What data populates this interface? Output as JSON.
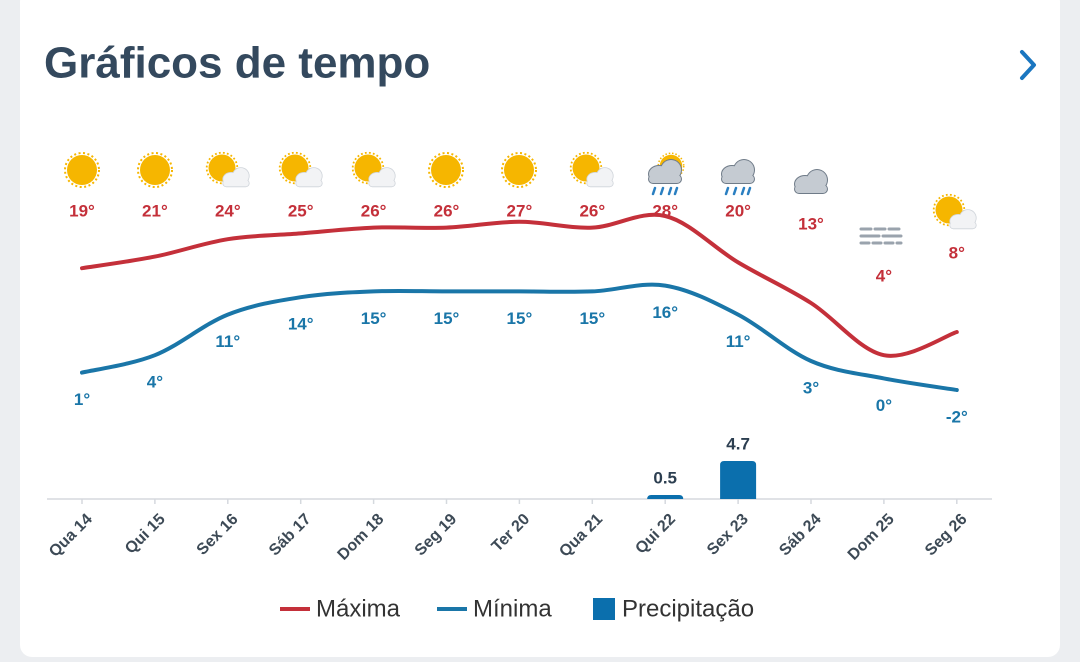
{
  "chart_data": {
    "type": "line",
    "title": "Gráficos de tempo",
    "categories": [
      "Qua 14",
      "Qui 15",
      "Sex 16",
      "Sáb 17",
      "Dom 18",
      "Seg 19",
      "Ter 20",
      "Qua 21",
      "Qui 22",
      "Sex 23",
      "Sáb 24",
      "Dom 25",
      "Seg 26"
    ],
    "series": [
      {
        "name": "Máxima",
        "color": "#c4303a",
        "values": [
          19,
          21,
          24,
          25,
          26,
          26,
          27,
          26,
          28,
          20,
          13,
          4,
          8
        ],
        "value_labels": [
          "19°",
          "21°",
          "24°",
          "25°",
          "26°",
          "26°",
          "27°",
          "26°",
          "28°",
          "20°",
          "13°",
          "4°",
          "8°"
        ]
      },
      {
        "name": "Mínima",
        "color": "#1a76a8",
        "values": [
          1,
          4,
          11,
          14,
          15,
          15,
          15,
          15,
          16,
          11,
          3,
          0,
          -2
        ],
        "value_labels": [
          "1°",
          "4°",
          "11°",
          "14°",
          "15°",
          "15°",
          "15°",
          "15°",
          "16°",
          "11°",
          "3°",
          "0°",
          "-2°"
        ]
      },
      {
        "name": "Precipitação",
        "type": "bar",
        "color": "#0b6fad",
        "values": [
          null,
          null,
          null,
          null,
          null,
          null,
          null,
          null,
          0.5,
          4.7,
          null,
          null,
          null
        ]
      }
    ]
  }
}
